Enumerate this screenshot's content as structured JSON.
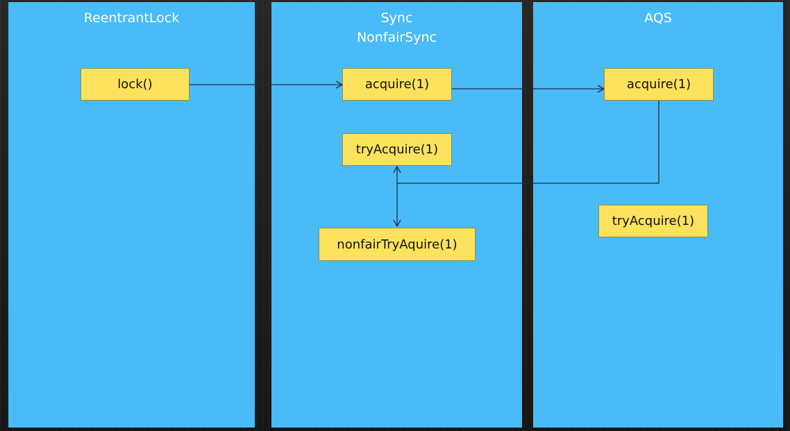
{
  "lanes": [
    {
      "title_lines": [
        "ReentrantLock"
      ]
    },
    {
      "title_lines": [
        "Sync",
        "NonfairSync"
      ]
    },
    {
      "title_lines": [
        "AQS"
      ]
    }
  ],
  "boxes": {
    "reentrantlock_lock": "lock()",
    "sync_acquire": "acquire(1)",
    "sync_try_acquire": "tryAcquire(1)",
    "sync_nonfair_try_acquire": "nonfairTryAquire(1)",
    "aqs_acquire": "acquire(1)",
    "aqs_try_acquire": "tryAcquire(1)"
  },
  "colors": {
    "lane_fill": "#49bbf7",
    "box_fill": "#fde25e",
    "box_border": "#9a8a3a",
    "connector": "#1b2e4a",
    "title_text": "#ffffff"
  }
}
